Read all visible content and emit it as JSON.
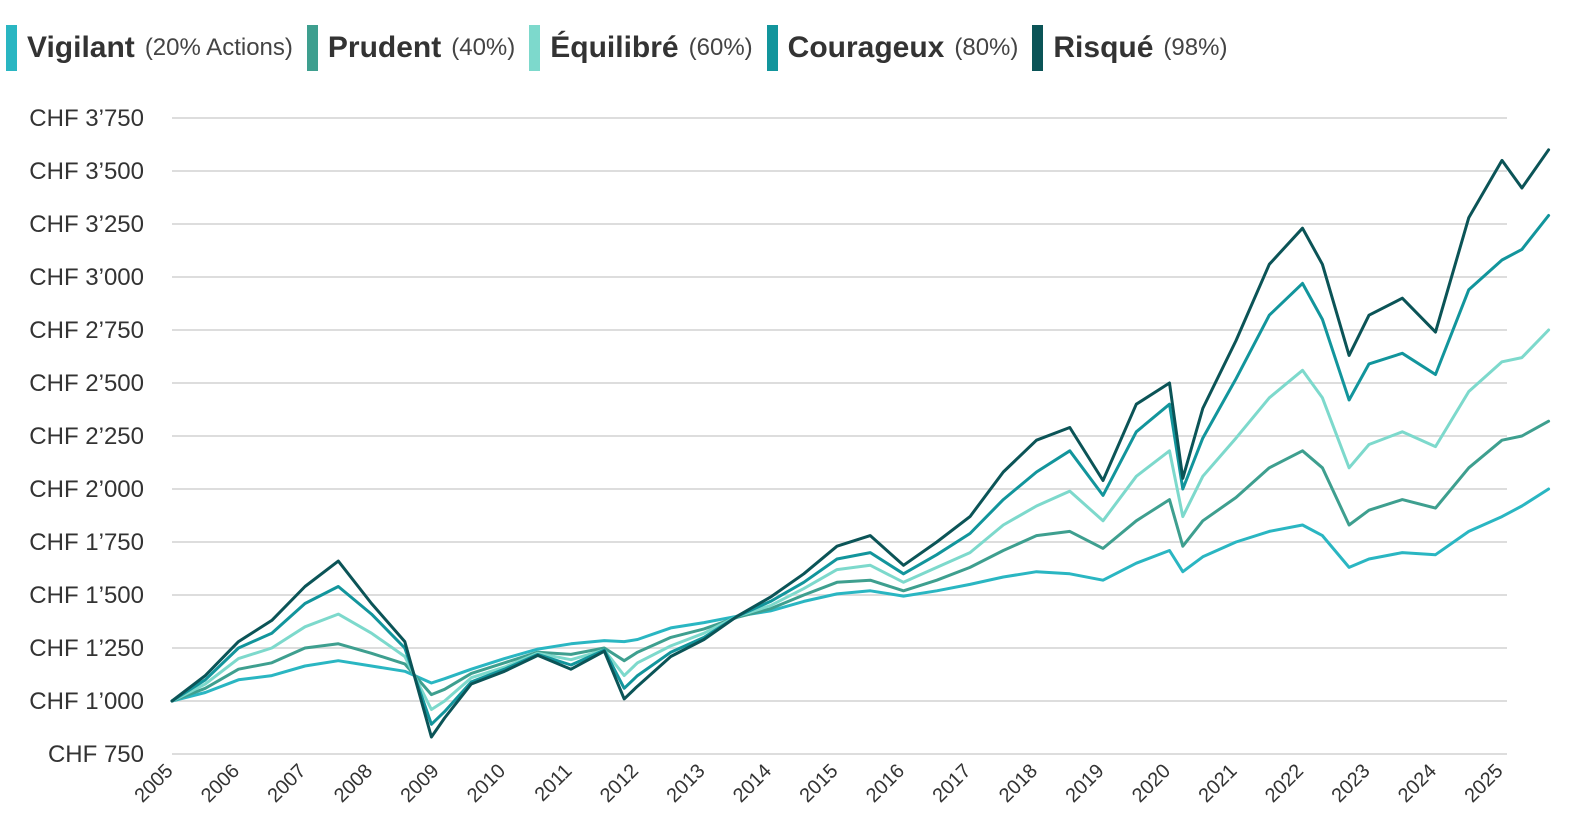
{
  "chart_data": {
    "type": "line",
    "title": "",
    "xlabel": "",
    "ylabel": "",
    "ylim": [
      750,
      3750
    ],
    "xlim": [
      2005,
      2025.7
    ],
    "grid": "horizontal",
    "legend_position": "top",
    "y_ticks": [
      {
        "value": 3750,
        "label": "CHF 3’750"
      },
      {
        "value": 3500,
        "label": "CHF 3’500"
      },
      {
        "value": 3250,
        "label": "CHF 3’250"
      },
      {
        "value": 3000,
        "label": "CHF 3’000"
      },
      {
        "value": 2750,
        "label": "CHF 2’750"
      },
      {
        "value": 2500,
        "label": "CHF 2’500"
      },
      {
        "value": 2250,
        "label": "CHF 2’250"
      },
      {
        "value": 2000,
        "label": "CHF 2’000"
      },
      {
        "value": 1750,
        "label": "CHF 1’750"
      },
      {
        "value": 1500,
        "label": "CHF 1’500"
      },
      {
        "value": 1250,
        "label": "CHF 1’250"
      },
      {
        "value": 1000,
        "label": "CHF 1’000"
      },
      {
        "value": 750,
        "label": "CHF 750"
      }
    ],
    "x_ticks": [
      "2005",
      "2006",
      "2007",
      "2008",
      "2009",
      "2010",
      "2011",
      "2012",
      "2013",
      "2014",
      "2015",
      "2016",
      "2017",
      "2018",
      "2019",
      "2020",
      "2021",
      "2022",
      "2023",
      "2024",
      "2025"
    ],
    "series": [
      {
        "name": "Vigilant",
        "allocation": "(20% Actions)",
        "color": "#2ab6c2",
        "points": [
          [
            2005,
            1000
          ],
          [
            2005.5,
            1040
          ],
          [
            2006,
            1100
          ],
          [
            2006.5,
            1120
          ],
          [
            2007,
            1165
          ],
          [
            2007.5,
            1190
          ],
          [
            2008,
            1165
          ],
          [
            2008.5,
            1140
          ],
          [
            2008.9,
            1085
          ],
          [
            2009.1,
            1105
          ],
          [
            2009.5,
            1150
          ],
          [
            2010,
            1200
          ],
          [
            2010.5,
            1245
          ],
          [
            2011,
            1270
          ],
          [
            2011.5,
            1285
          ],
          [
            2011.8,
            1280
          ],
          [
            2012,
            1290
          ],
          [
            2012.5,
            1345
          ],
          [
            2013,
            1370
          ],
          [
            2013.5,
            1400
          ],
          [
            2014,
            1425
          ],
          [
            2014.5,
            1470
          ],
          [
            2015,
            1505
          ],
          [
            2015.5,
            1520
          ],
          [
            2016,
            1495
          ],
          [
            2016.5,
            1520
          ],
          [
            2017,
            1550
          ],
          [
            2017.5,
            1585
          ],
          [
            2018,
            1610
          ],
          [
            2018.5,
            1600
          ],
          [
            2019,
            1570
          ],
          [
            2019.5,
            1650
          ],
          [
            2020,
            1710
          ],
          [
            2020.2,
            1610
          ],
          [
            2020.5,
            1680
          ],
          [
            2021,
            1750
          ],
          [
            2021.5,
            1800
          ],
          [
            2022,
            1830
          ],
          [
            2022.3,
            1780
          ],
          [
            2022.7,
            1630
          ],
          [
            2023,
            1670
          ],
          [
            2023.5,
            1700
          ],
          [
            2024,
            1690
          ],
          [
            2024.5,
            1800
          ],
          [
            2025,
            1870
          ],
          [
            2025.3,
            1920
          ],
          [
            2025.7,
            2000
          ]
        ]
      },
      {
        "name": "Prudent",
        "allocation": "(40%)",
        "color": "#3e9f8f",
        "points": [
          [
            2005,
            1000
          ],
          [
            2005.5,
            1060
          ],
          [
            2006,
            1150
          ],
          [
            2006.5,
            1180
          ],
          [
            2007,
            1250
          ],
          [
            2007.5,
            1270
          ],
          [
            2008,
            1225
          ],
          [
            2008.5,
            1175
          ],
          [
            2008.9,
            1030
          ],
          [
            2009.1,
            1055
          ],
          [
            2009.5,
            1130
          ],
          [
            2010,
            1180
          ],
          [
            2010.5,
            1230
          ],
          [
            2011,
            1220
          ],
          [
            2011.5,
            1250
          ],
          [
            2011.8,
            1190
          ],
          [
            2012,
            1230
          ],
          [
            2012.5,
            1300
          ],
          [
            2013,
            1340
          ],
          [
            2013.5,
            1395
          ],
          [
            2014,
            1435
          ],
          [
            2014.5,
            1500
          ],
          [
            2015,
            1560
          ],
          [
            2015.5,
            1570
          ],
          [
            2016,
            1520
          ],
          [
            2016.5,
            1570
          ],
          [
            2017,
            1630
          ],
          [
            2017.5,
            1710
          ],
          [
            2018,
            1780
          ],
          [
            2018.5,
            1800
          ],
          [
            2019,
            1720
          ],
          [
            2019.5,
            1850
          ],
          [
            2020,
            1950
          ],
          [
            2020.2,
            1730
          ],
          [
            2020.5,
            1850
          ],
          [
            2021,
            1960
          ],
          [
            2021.5,
            2100
          ],
          [
            2022,
            2180
          ],
          [
            2022.3,
            2100
          ],
          [
            2022.7,
            1830
          ],
          [
            2023,
            1900
          ],
          [
            2023.5,
            1950
          ],
          [
            2024,
            1910
          ],
          [
            2024.5,
            2100
          ],
          [
            2025,
            2230
          ],
          [
            2025.3,
            2250
          ],
          [
            2025.7,
            2320
          ]
        ]
      },
      {
        "name": "Équilibré",
        "allocation": "(60%)",
        "color": "#7dd9cc",
        "points": [
          [
            2005,
            1000
          ],
          [
            2005.5,
            1080
          ],
          [
            2006,
            1200
          ],
          [
            2006.5,
            1250
          ],
          [
            2007,
            1350
          ],
          [
            2007.5,
            1410
          ],
          [
            2008,
            1320
          ],
          [
            2008.5,
            1210
          ],
          [
            2008.9,
            960
          ],
          [
            2009.1,
            1000
          ],
          [
            2009.5,
            1110
          ],
          [
            2010,
            1160
          ],
          [
            2010.5,
            1225
          ],
          [
            2011,
            1195
          ],
          [
            2011.5,
            1240
          ],
          [
            2011.8,
            1120
          ],
          [
            2012,
            1180
          ],
          [
            2012.5,
            1260
          ],
          [
            2013,
            1320
          ],
          [
            2013.5,
            1400
          ],
          [
            2014,
            1450
          ],
          [
            2014.5,
            1530
          ],
          [
            2015,
            1620
          ],
          [
            2015.5,
            1640
          ],
          [
            2016,
            1560
          ],
          [
            2016.5,
            1630
          ],
          [
            2017,
            1700
          ],
          [
            2017.5,
            1830
          ],
          [
            2018,
            1920
          ],
          [
            2018.5,
            1990
          ],
          [
            2019,
            1850
          ],
          [
            2019.5,
            2060
          ],
          [
            2020,
            2180
          ],
          [
            2020.2,
            1870
          ],
          [
            2020.5,
            2060
          ],
          [
            2021,
            2240
          ],
          [
            2021.5,
            2430
          ],
          [
            2022,
            2560
          ],
          [
            2022.3,
            2430
          ],
          [
            2022.7,
            2100
          ],
          [
            2023,
            2210
          ],
          [
            2023.5,
            2270
          ],
          [
            2024,
            2200
          ],
          [
            2024.5,
            2460
          ],
          [
            2025,
            2600
          ],
          [
            2025.3,
            2620
          ],
          [
            2025.7,
            2750
          ]
        ]
      },
      {
        "name": "Courageux",
        "allocation": "(80%)",
        "color": "#12959c",
        "points": [
          [
            2005,
            1000
          ],
          [
            2005.5,
            1100
          ],
          [
            2006,
            1250
          ],
          [
            2006.5,
            1320
          ],
          [
            2007,
            1460
          ],
          [
            2007.5,
            1540
          ],
          [
            2008,
            1410
          ],
          [
            2008.5,
            1250
          ],
          [
            2008.9,
            890
          ],
          [
            2009.1,
            950
          ],
          [
            2009.5,
            1090
          ],
          [
            2010,
            1150
          ],
          [
            2010.5,
            1220
          ],
          [
            2011,
            1170
          ],
          [
            2011.5,
            1240
          ],
          [
            2011.8,
            1060
          ],
          [
            2012,
            1120
          ],
          [
            2012.5,
            1230
          ],
          [
            2013,
            1300
          ],
          [
            2013.5,
            1400
          ],
          [
            2014,
            1470
          ],
          [
            2014.5,
            1560
          ],
          [
            2015,
            1670
          ],
          [
            2015.5,
            1700
          ],
          [
            2016,
            1600
          ],
          [
            2016.5,
            1690
          ],
          [
            2017,
            1790
          ],
          [
            2017.5,
            1950
          ],
          [
            2018,
            2080
          ],
          [
            2018.5,
            2180
          ],
          [
            2019,
            1970
          ],
          [
            2019.5,
            2270
          ],
          [
            2020,
            2400
          ],
          [
            2020.2,
            2000
          ],
          [
            2020.5,
            2240
          ],
          [
            2021,
            2520
          ],
          [
            2021.5,
            2820
          ],
          [
            2022,
            2970
          ],
          [
            2022.3,
            2800
          ],
          [
            2022.7,
            2420
          ],
          [
            2023,
            2590
          ],
          [
            2023.5,
            2640
          ],
          [
            2024,
            2540
          ],
          [
            2024.5,
            2940
          ],
          [
            2025,
            3080
          ],
          [
            2025.3,
            3130
          ],
          [
            2025.7,
            3290
          ]
        ]
      },
      {
        "name": "Risqué",
        "allocation": "(98%)",
        "color": "#0b5457",
        "points": [
          [
            2005,
            1000
          ],
          [
            2005.5,
            1120
          ],
          [
            2006,
            1280
          ],
          [
            2006.5,
            1380
          ],
          [
            2007,
            1540
          ],
          [
            2007.5,
            1660
          ],
          [
            2008,
            1460
          ],
          [
            2008.5,
            1280
          ],
          [
            2008.9,
            830
          ],
          [
            2009.1,
            920
          ],
          [
            2009.5,
            1080
          ],
          [
            2010,
            1140
          ],
          [
            2010.5,
            1215
          ],
          [
            2011,
            1150
          ],
          [
            2011.5,
            1235
          ],
          [
            2011.8,
            1010
          ],
          [
            2012,
            1070
          ],
          [
            2012.5,
            1210
          ],
          [
            2013,
            1290
          ],
          [
            2013.5,
            1400
          ],
          [
            2014,
            1490
          ],
          [
            2014.5,
            1600
          ],
          [
            2015,
            1730
          ],
          [
            2015.5,
            1780
          ],
          [
            2016,
            1640
          ],
          [
            2016.5,
            1750
          ],
          [
            2017,
            1870
          ],
          [
            2017.5,
            2080
          ],
          [
            2018,
            2230
          ],
          [
            2018.5,
            2290
          ],
          [
            2019,
            2040
          ],
          [
            2019.5,
            2400
          ],
          [
            2020,
            2500
          ],
          [
            2020.2,
            2050
          ],
          [
            2020.5,
            2380
          ],
          [
            2021,
            2700
          ],
          [
            2021.5,
            3060
          ],
          [
            2022,
            3230
          ],
          [
            2022.3,
            3060
          ],
          [
            2022.7,
            2630
          ],
          [
            2023,
            2820
          ],
          [
            2023.5,
            2900
          ],
          [
            2024,
            2740
          ],
          [
            2024.5,
            3280
          ],
          [
            2025,
            3550
          ],
          [
            2025.3,
            3420
          ],
          [
            2025.7,
            3600
          ]
        ]
      }
    ]
  }
}
